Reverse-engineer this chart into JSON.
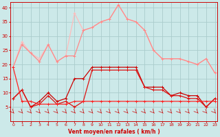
{
  "x": [
    0,
    1,
    2,
    3,
    4,
    5,
    6,
    7,
    8,
    9,
    10,
    11,
    12,
    13,
    14,
    15,
    16,
    17,
    18,
    19,
    20,
    21,
    22,
    23
  ],
  "line_rafales_max": [
    19,
    28,
    24,
    22,
    27,
    21,
    23,
    38,
    32,
    33,
    35,
    36,
    41,
    36,
    35,
    32,
    25,
    22,
    22,
    22,
    21,
    20,
    22,
    17
  ],
  "line_rafales_mid": [
    19,
    27,
    24,
    21,
    27,
    21,
    23,
    23,
    32,
    33,
    35,
    36,
    41,
    36,
    35,
    32,
    25,
    22,
    22,
    22,
    21,
    20,
    22,
    17
  ],
  "line_vent_moyen1": [
    8,
    11,
    5,
    7,
    10,
    7,
    8,
    15,
    15,
    19,
    19,
    19,
    19,
    19,
    19,
    12,
    12,
    12,
    9,
    10,
    9,
    9,
    5,
    8
  ],
  "line_vent_moyen2": [
    8,
    11,
    5,
    6,
    9,
    6,
    7,
    5,
    7,
    18,
    18,
    18,
    18,
    18,
    18,
    12,
    11,
    11,
    9,
    9,
    8,
    8,
    5,
    8
  ],
  "line_flat": [
    19,
    7,
    7,
    6,
    6,
    6,
    6,
    7,
    7,
    7,
    7,
    7,
    7,
    7,
    7,
    7,
    7,
    7,
    7,
    7,
    7,
    7,
    7,
    7
  ],
  "bg_color": "#cce9e9",
  "grid_color": "#aacccc",
  "color_light1": "#ffbbbb",
  "color_light2": "#ff8888",
  "color_dark1": "#cc0000",
  "color_dark2": "#dd1111",
  "color_dark3": "#ff2222",
  "xlabel": "Vent moyen/en rafales ( km/h )",
  "ylim": [
    0,
    42
  ],
  "yticks": [
    5,
    10,
    15,
    20,
    25,
    30,
    35,
    40
  ],
  "xticks": [
    0,
    1,
    2,
    3,
    4,
    5,
    6,
    7,
    8,
    9,
    10,
    11,
    12,
    13,
    14,
    15,
    16,
    17,
    18,
    19,
    20,
    21,
    22,
    23
  ],
  "title_color": "#cc0000",
  "marker_size": 3,
  "lw": 0.9
}
